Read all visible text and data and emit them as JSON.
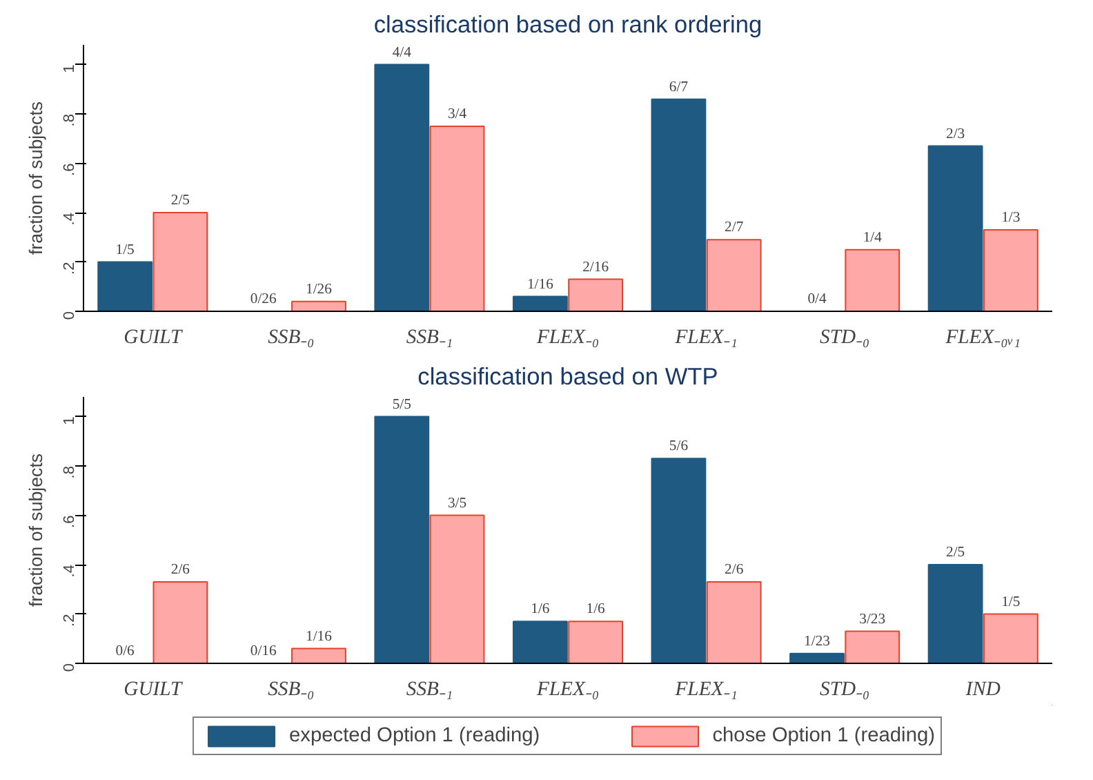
{
  "chart_data": [
    {
      "type": "bar",
      "title": "classification based on rank ordering",
      "ylabel": "fraction of subjects",
      "categories": [
        "GUILT",
        "SSB₋₀",
        "SSB₋₁",
        "FLEX₋₀",
        "FLEX₋₁",
        "STD₋₀",
        "FLEX₋₀ᵥ₁"
      ],
      "ylim": [
        0,
        1.08
      ],
      "yticks": [
        0,
        {
          "value": 0.2,
          "label": ".2"
        },
        {
          "value": 0.4,
          "label": ".4"
        },
        {
          "value": 0.6,
          "label": ".6"
        },
        {
          "value": 0.8,
          "label": ".8"
        },
        1
      ],
      "grid": false,
      "legend": "bottom",
      "series": [
        {
          "name": "expected Option 1 (reading)",
          "color": "#1f5a82",
          "values": [
            0.2,
            0,
            1,
            0.06,
            0.86,
            0,
            0.67
          ],
          "value_labels": [
            "1/5",
            "0/26",
            "4/4",
            "1/16",
            "6/7",
            "0/4",
            "2/3"
          ]
        },
        {
          "name": "chose Option 1 (reading)",
          "color": "#ffa8a8",
          "values": [
            0.4,
            0.04,
            0.75,
            0.13,
            0.29,
            0.25,
            0.33
          ],
          "value_labels": [
            "2/5",
            "1/26",
            "3/4",
            "2/16",
            "2/7",
            "1/4",
            "1/3"
          ]
        }
      ]
    },
    {
      "type": "bar",
      "title": "classification based on WTP",
      "ylabel": "fraction of subjects",
      "categories": [
        "GUILT",
        "SSB₋₀",
        "SSB₋₁",
        "FLEX₋₀",
        "FLEX₋₁",
        "STD₋₀",
        "IND"
      ],
      "ylim": [
        0,
        1.08
      ],
      "yticks": [
        0,
        {
          "value": 0.2,
          "label": ".2"
        },
        {
          "value": 0.4,
          "label": ".4"
        },
        {
          "value": 0.6,
          "label": ".6"
        },
        {
          "value": 0.8,
          "label": ".8"
        },
        1
      ],
      "grid": false,
      "series": [
        {
          "color": "#1f5a82",
          "values": [
            0,
            0,
            1,
            0.17,
            0.83,
            0.04,
            0.4
          ],
          "value_labels": [
            "0/6",
            "0/16",
            "5/5",
            "1/6",
            "5/6",
            "1/23",
            "2/5"
          ]
        },
        {
          "color": "#ffa8a8",
          "values": [
            0.33,
            0.06,
            0.6,
            0.17,
            0.33,
            0.13,
            0.2
          ],
          "value_labels": [
            "2/6",
            "1/16",
            "3/5",
            "1/6",
            "2/6",
            "3/23",
            "1/5"
          ]
        }
      ]
    }
  ]
}
